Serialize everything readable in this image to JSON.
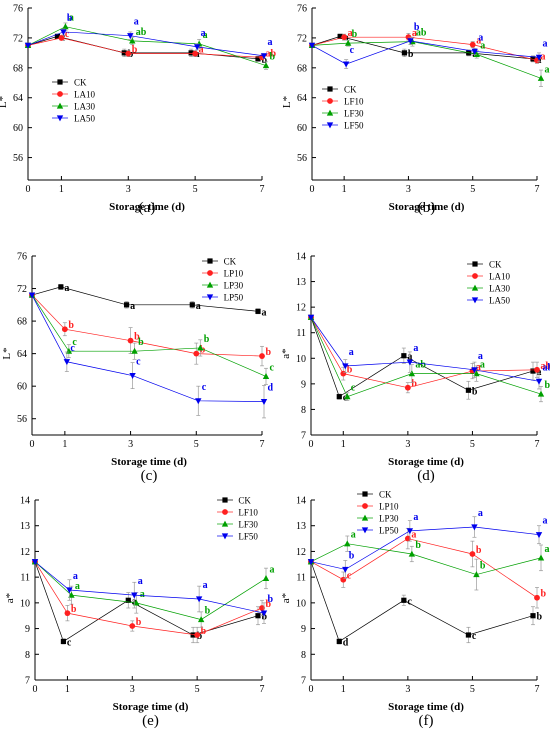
{
  "colors": {
    "CK": "#000000",
    "A10": "#ff2020",
    "A30": "#00a000",
    "A50": "#0000ee"
  },
  "chart_data": [
    {
      "type": "line",
      "caption": "(a)",
      "xlabel": "Storage time (d)",
      "ylabel": "L*",
      "x": [
        0,
        1,
        3,
        5,
        7
      ],
      "xticks": [
        0,
        1,
        3,
        5,
        7
      ],
      "xlim": [
        0,
        7
      ],
      "ylim": [
        53,
        76
      ],
      "yticks": [
        56,
        60,
        64,
        68,
        72,
        76
      ],
      "legend_position": "upper-left",
      "series": [
        {
          "name": "CK",
          "values": [
            71.0,
            72.2,
            70.0,
            70.0,
            69.2
          ],
          "errors": [
            0,
            0.3,
            0.5,
            0.5,
            0.3
          ],
          "labels": [
            "",
            "c",
            "b",
            "a",
            "b"
          ]
        },
        {
          "name": "LA10",
          "values": [
            71.0,
            72.0,
            69.9,
            69.9,
            69.4
          ],
          "errors": [
            0,
            0.3,
            0.4,
            0.4,
            0.3
          ],
          "labels": [
            "",
            "c",
            "b",
            "a",
            "ab"
          ]
        },
        {
          "name": "LA30",
          "values": [
            71.0,
            73.5,
            71.6,
            71.2,
            68.3
          ],
          "errors": [
            0,
            0.5,
            0.5,
            0.6,
            0.5
          ],
          "labels": [
            "",
            "a",
            "ab",
            "a",
            "b"
          ]
        },
        {
          "name": "LA50",
          "values": [
            71.0,
            72.8,
            72.3,
            70.8,
            69.6
          ],
          "errors": [
            0,
            0.4,
            0.5,
            0.4,
            0.3
          ],
          "labels": [
            "",
            "b",
            "a",
            "a",
            "a"
          ]
        }
      ]
    },
    {
      "type": "line",
      "caption": "(b)",
      "xlabel": "Storage time (d)",
      "ylabel": "L*",
      "x": [
        0,
        1,
        3,
        5,
        7
      ],
      "xticks": [
        0,
        1,
        3,
        5,
        7
      ],
      "xlim": [
        0,
        7
      ],
      "ylim": [
        53,
        76
      ],
      "yticks": [
        56,
        60,
        64,
        68,
        72,
        76
      ],
      "legend_position": "lower-left",
      "series": [
        {
          "name": "CK",
          "values": [
            71.0,
            72.2,
            70.0,
            70.0,
            69.2
          ],
          "errors": [
            0,
            0.3,
            0.5,
            0.4,
            0.4
          ],
          "labels": [
            "",
            "a",
            "b",
            "a",
            "a"
          ]
        },
        {
          "name": "LF10",
          "values": [
            71.0,
            72.1,
            72.1,
            71.1,
            69.0
          ],
          "errors": [
            0,
            0.4,
            0.5,
            0.4,
            0.4
          ],
          "labels": [
            "",
            "a",
            "a",
            "a",
            "a"
          ]
        },
        {
          "name": "LF30",
          "values": [
            71.0,
            71.3,
            71.5,
            69.8,
            66.6
          ],
          "errors": [
            0,
            0.4,
            0.6,
            0.5,
            1.1
          ],
          "labels": [
            "",
            "b",
            "ab",
            "a",
            "a"
          ]
        },
        {
          "name": "LF50",
          "values": [
            71.0,
            68.5,
            71.6,
            70.2,
            69.4
          ],
          "errors": [
            0,
            0.6,
            0.5,
            0.4,
            0.6
          ],
          "labels": [
            "",
            "c",
            "b",
            "a",
            "a"
          ]
        }
      ]
    },
    {
      "type": "line",
      "caption": "(c)",
      "xlabel": "Storage time (d)",
      "ylabel": "L*",
      "x": [
        0,
        1,
        3,
        5,
        7
      ],
      "xticks": [
        0,
        1,
        3,
        5,
        7
      ],
      "xlim": [
        0,
        7
      ],
      "ylim": [
        54,
        76
      ],
      "yticks": [
        56,
        60,
        64,
        68,
        72,
        76
      ],
      "legend_position": "upper-right",
      "series": [
        {
          "name": "CK",
          "values": [
            71.2,
            72.2,
            70.0,
            70.0,
            69.2
          ],
          "errors": [
            0,
            0.3,
            0.4,
            0.4,
            0.3
          ],
          "labels": [
            "",
            "a",
            "a",
            "a",
            "a"
          ]
        },
        {
          "name": "LP10",
          "values": [
            71.2,
            67.0,
            65.6,
            64.0,
            63.7
          ],
          "errors": [
            0,
            0.8,
            1.6,
            1.3,
            1.2
          ],
          "labels": [
            "",
            "b",
            "b",
            "b",
            "b"
          ]
        },
        {
          "name": "LP30",
          "values": [
            71.2,
            64.3,
            64.3,
            64.7,
            61.2
          ],
          "errors": [
            0,
            0.8,
            1.0,
            1.0,
            1.0
          ],
          "labels": [
            "",
            "c",
            "b",
            "b",
            "c"
          ]
        },
        {
          "name": "LP50",
          "values": [
            71.2,
            63.0,
            61.3,
            58.2,
            58.1
          ],
          "errors": [
            0,
            1.2,
            1.6,
            1.8,
            2.0
          ],
          "labels": [
            "",
            "c",
            "c",
            "c",
            "d"
          ]
        }
      ]
    },
    {
      "type": "line",
      "caption": "(d)",
      "xlabel": "Storage time (d)",
      "ylabel": "a*",
      "x": [
        0,
        1,
        3,
        5,
        7
      ],
      "xticks": [
        0,
        1,
        3,
        5,
        7
      ],
      "xlim": [
        0,
        7
      ],
      "ylim": [
        7,
        14
      ],
      "yticks": [
        7,
        8,
        9,
        10,
        11,
        12,
        13,
        14
      ],
      "legend_position": "upper-right",
      "series": [
        {
          "name": "CK",
          "values": [
            11.6,
            8.5,
            10.1,
            8.75,
            9.5
          ],
          "errors": [
            0,
            0.1,
            0.3,
            0.35,
            0.35
          ],
          "labels": [
            "",
            "c",
            "a",
            "b",
            "a"
          ]
        },
        {
          "name": "LA10",
          "values": [
            11.6,
            9.4,
            8.85,
            9.5,
            9.55
          ],
          "errors": [
            0,
            0.25,
            0.2,
            0.3,
            0.3
          ],
          "labels": [
            "",
            "b",
            "b",
            "a",
            "ab"
          ]
        },
        {
          "name": "LA30",
          "values": [
            11.6,
            8.5,
            9.4,
            9.4,
            8.6
          ],
          "errors": [
            0,
            0.15,
            0.35,
            0.3,
            0.3
          ],
          "labels": [
            "",
            "c",
            "ab",
            "a",
            "b"
          ]
        },
        {
          "name": "LA50",
          "values": [
            11.6,
            9.7,
            9.85,
            9.55,
            9.1
          ],
          "errors": [
            0,
            0.25,
            0.4,
            0.3,
            0.3
          ],
          "labels": [
            "",
            "a",
            "a",
            "a",
            "ab"
          ]
        }
      ]
    },
    {
      "type": "line",
      "caption": "(e)",
      "xlabel": "Storage time (d)",
      "ylabel": "a*",
      "x": [
        0,
        1,
        3,
        5,
        7
      ],
      "xticks": [
        0,
        1,
        3,
        5,
        7
      ],
      "xlim": [
        0,
        7
      ],
      "ylim": [
        7,
        14
      ],
      "yticks": [
        7,
        8,
        9,
        10,
        11,
        12,
        13,
        14
      ],
      "legend_position": "upper-right",
      "series": [
        {
          "name": "CK",
          "values": [
            11.6,
            8.5,
            10.1,
            8.75,
            9.5
          ],
          "errors": [
            0,
            0.1,
            0.3,
            0.3,
            0.35
          ],
          "labels": [
            "",
            "c",
            "a",
            "b",
            "b"
          ]
        },
        {
          "name": "LF10",
          "values": [
            11.6,
            9.6,
            9.1,
            8.75,
            9.8
          ],
          "errors": [
            0,
            0.3,
            0.2,
            0.3,
            0.3
          ],
          "labels": [
            "",
            "b",
            "b",
            "b",
            "b"
          ]
        },
        {
          "name": "LF30",
          "values": [
            11.6,
            10.3,
            10.0,
            9.35,
            10.95
          ],
          "errors": [
            0,
            0.35,
            0.4,
            0.3,
            0.4
          ],
          "labels": [
            "",
            "a",
            "a",
            "b",
            "a"
          ]
        },
        {
          "name": "LF50",
          "values": [
            11.6,
            10.5,
            10.3,
            10.15,
            9.6
          ],
          "errors": [
            0,
            0.4,
            0.5,
            0.5,
            0.4
          ],
          "labels": [
            "",
            "a",
            "a",
            "a",
            "b"
          ]
        }
      ]
    },
    {
      "type": "line",
      "caption": "(f)",
      "xlabel": "Storage time (d)",
      "ylabel": "a*",
      "x": [
        0,
        1,
        3,
        5,
        7
      ],
      "xticks": [
        0,
        1,
        3,
        5,
        7
      ],
      "xlim": [
        0,
        7
      ],
      "ylim": [
        7,
        14
      ],
      "yticks": [
        7,
        8,
        9,
        10,
        11,
        12,
        13,
        14
      ],
      "legend_position": "upper-left",
      "series": [
        {
          "name": "CK",
          "values": [
            11.6,
            8.5,
            10.1,
            8.75,
            9.5
          ],
          "errors": [
            0,
            0.1,
            0.2,
            0.3,
            0.35
          ],
          "labels": [
            "",
            "d",
            "c",
            "c",
            "b"
          ]
        },
        {
          "name": "LP10",
          "values": [
            11.6,
            10.9,
            12.5,
            11.9,
            10.2
          ],
          "errors": [
            0,
            0.3,
            0.4,
            0.5,
            0.4
          ],
          "labels": [
            "",
            "c",
            "a",
            "b",
            "b"
          ]
        },
        {
          "name": "LP30",
          "values": [
            11.6,
            12.3,
            11.9,
            11.1,
            11.75
          ],
          "errors": [
            0,
            0.3,
            0.3,
            0.6,
            0.5
          ],
          "labels": [
            "",
            "a",
            "b",
            "b",
            "a"
          ]
        },
        {
          "name": "LP50",
          "values": [
            11.6,
            11.3,
            12.8,
            12.95,
            12.65
          ],
          "errors": [
            0,
            0.35,
            0.4,
            0.4,
            0.35
          ],
          "labels": [
            "",
            "b",
            "a",
            "a",
            "a"
          ]
        }
      ]
    }
  ]
}
